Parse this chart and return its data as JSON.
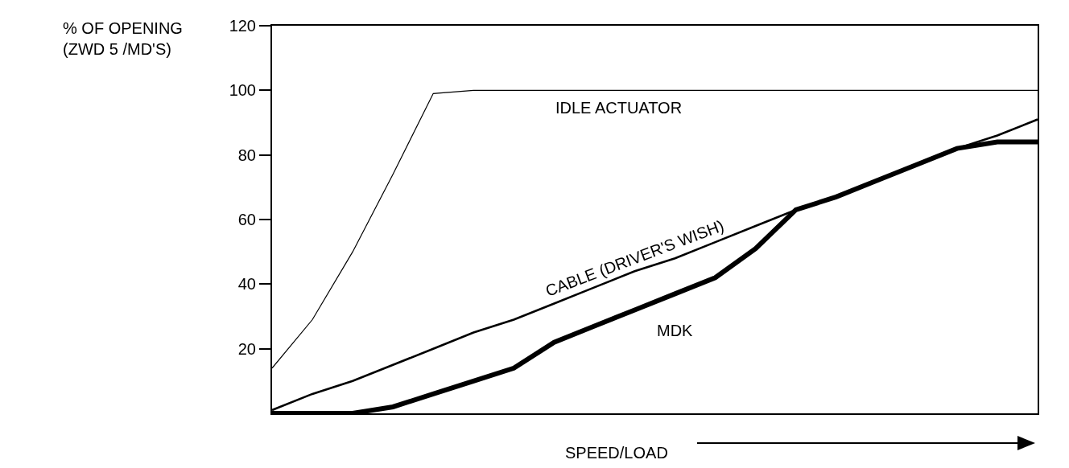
{
  "chart_data": {
    "type": "line",
    "ylabel": "% OF OPENING\n(ZWD 5 /MD'S)",
    "xlabel": "SPEED/LOAD",
    "marker": "none",
    "line_style": "solid",
    "categories": [
      null,
      null,
      null,
      null,
      null,
      null,
      null,
      null,
      null,
      null,
      null,
      null,
      null,
      null,
      null,
      null,
      null,
      null,
      null,
      null
    ],
    "series": [
      {
        "name": "IDLE ACTUATOR",
        "color": "#000000",
        "values": [
          14,
          29,
          50,
          74,
          99,
          100,
          100,
          100,
          100,
          100,
          100,
          100,
          100,
          100,
          100,
          100,
          100,
          100,
          100,
          100
        ]
      },
      {
        "name": "CABLE (DRIVER'S WISH)",
        "color": "#000000",
        "values": [
          1,
          6,
          10,
          15,
          20,
          25,
          29,
          34,
          39,
          44,
          48,
          53,
          58,
          63,
          67,
          72,
          77,
          82,
          86,
          91
        ]
      },
      {
        "name": "MDK",
        "color": "#000000",
        "values": [
          0,
          0,
          0,
          2,
          6,
          10,
          14,
          22,
          27,
          32,
          37,
          42,
          51,
          63,
          67,
          72,
          77,
          82,
          84,
          84
        ]
      }
    ],
    "ylim": [
      0,
      120
    ],
    "yticks": [
      20,
      40,
      60,
      80,
      100,
      120
    ]
  }
}
